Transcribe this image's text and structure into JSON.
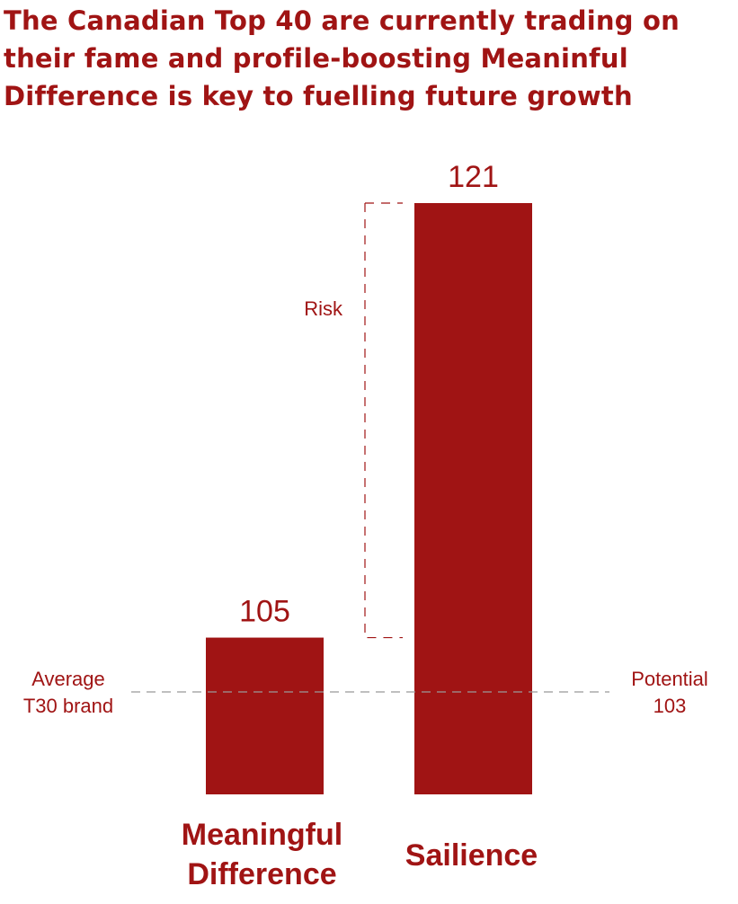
{
  "chart_data": {
    "type": "bar",
    "title": "The Canadian Top 40 are currently trading on their fame and profile-boosting Meaninful Difference is key to fuelling future growth",
    "categories": [
      "Meaningful Difference",
      "Sailience"
    ],
    "values": [
      105,
      121
    ],
    "value_labels": [
      "105",
      "121"
    ],
    "colors": {
      "bar": "#a01414",
      "text": "#a01414",
      "dashed": "#999999"
    },
    "reference_line": {
      "value": 103,
      "left_label": [
        "Average",
        "T30 brand"
      ],
      "right_label": [
        "Potential",
        "103"
      ]
    },
    "risk_bracket": {
      "label": "Risk",
      "from": 105,
      "to": 121
    },
    "xlabel": "",
    "ylabel": ""
  }
}
